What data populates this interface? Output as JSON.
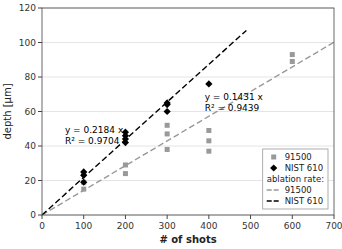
{
  "chart_data": {
    "type": "scatter",
    "title": "",
    "xlabel": "# of shots",
    "ylabel": "depth [µm]",
    "xlim": [
      0,
      700
    ],
    "ylim": [
      0,
      120
    ],
    "xticks": [
      0,
      100,
      200,
      300,
      400,
      500,
      600,
      700
    ],
    "yticks": [
      0,
      20,
      40,
      60,
      80,
      100,
      120
    ],
    "grid": "y",
    "legend": "lower right",
    "legend_heading": "ablation rate:",
    "series": [
      {
        "name": "91500",
        "type": "scatter",
        "marker": "square",
        "color": "#999999",
        "x": [
          100,
          100,
          100,
          200,
          200,
          300,
          300,
          300,
          400,
          400,
          400,
          600,
          600
        ],
        "values": [
          15,
          19,
          24,
          24,
          29,
          38,
          47,
          52,
          37,
          43,
          49,
          89,
          93
        ]
      },
      {
        "name": "NIST 610",
        "type": "scatter",
        "marker": "diamond",
        "color": "#000000",
        "x": [
          100,
          100,
          100,
          200,
          200,
          200,
          200,
          300,
          300,
          300,
          400
        ],
        "values": [
          19,
          23,
          25,
          42,
          44,
          46,
          48,
          60,
          64,
          65,
          76
        ]
      },
      {
        "name": "91500",
        "type": "line",
        "line_style": "dashed",
        "color": "#999999",
        "x": [
          0,
          700
        ],
        "values": [
          0,
          100.17
        ]
      },
      {
        "name": "NIST 610",
        "type": "line",
        "line_style": "dashed",
        "color": "#000000",
        "x": [
          0,
          490
        ],
        "values": [
          0,
          107.016
        ]
      }
    ],
    "annotations": [
      {
        "text": [
          "y = 0.2184 x",
          "R² = 0.9704"
        ],
        "x": 55,
        "y": 53
      },
      {
        "text": [
          "y = 0.1431 x",
          "R² = 0.9439"
        ],
        "x": 390,
        "y": 72
      }
    ]
  }
}
